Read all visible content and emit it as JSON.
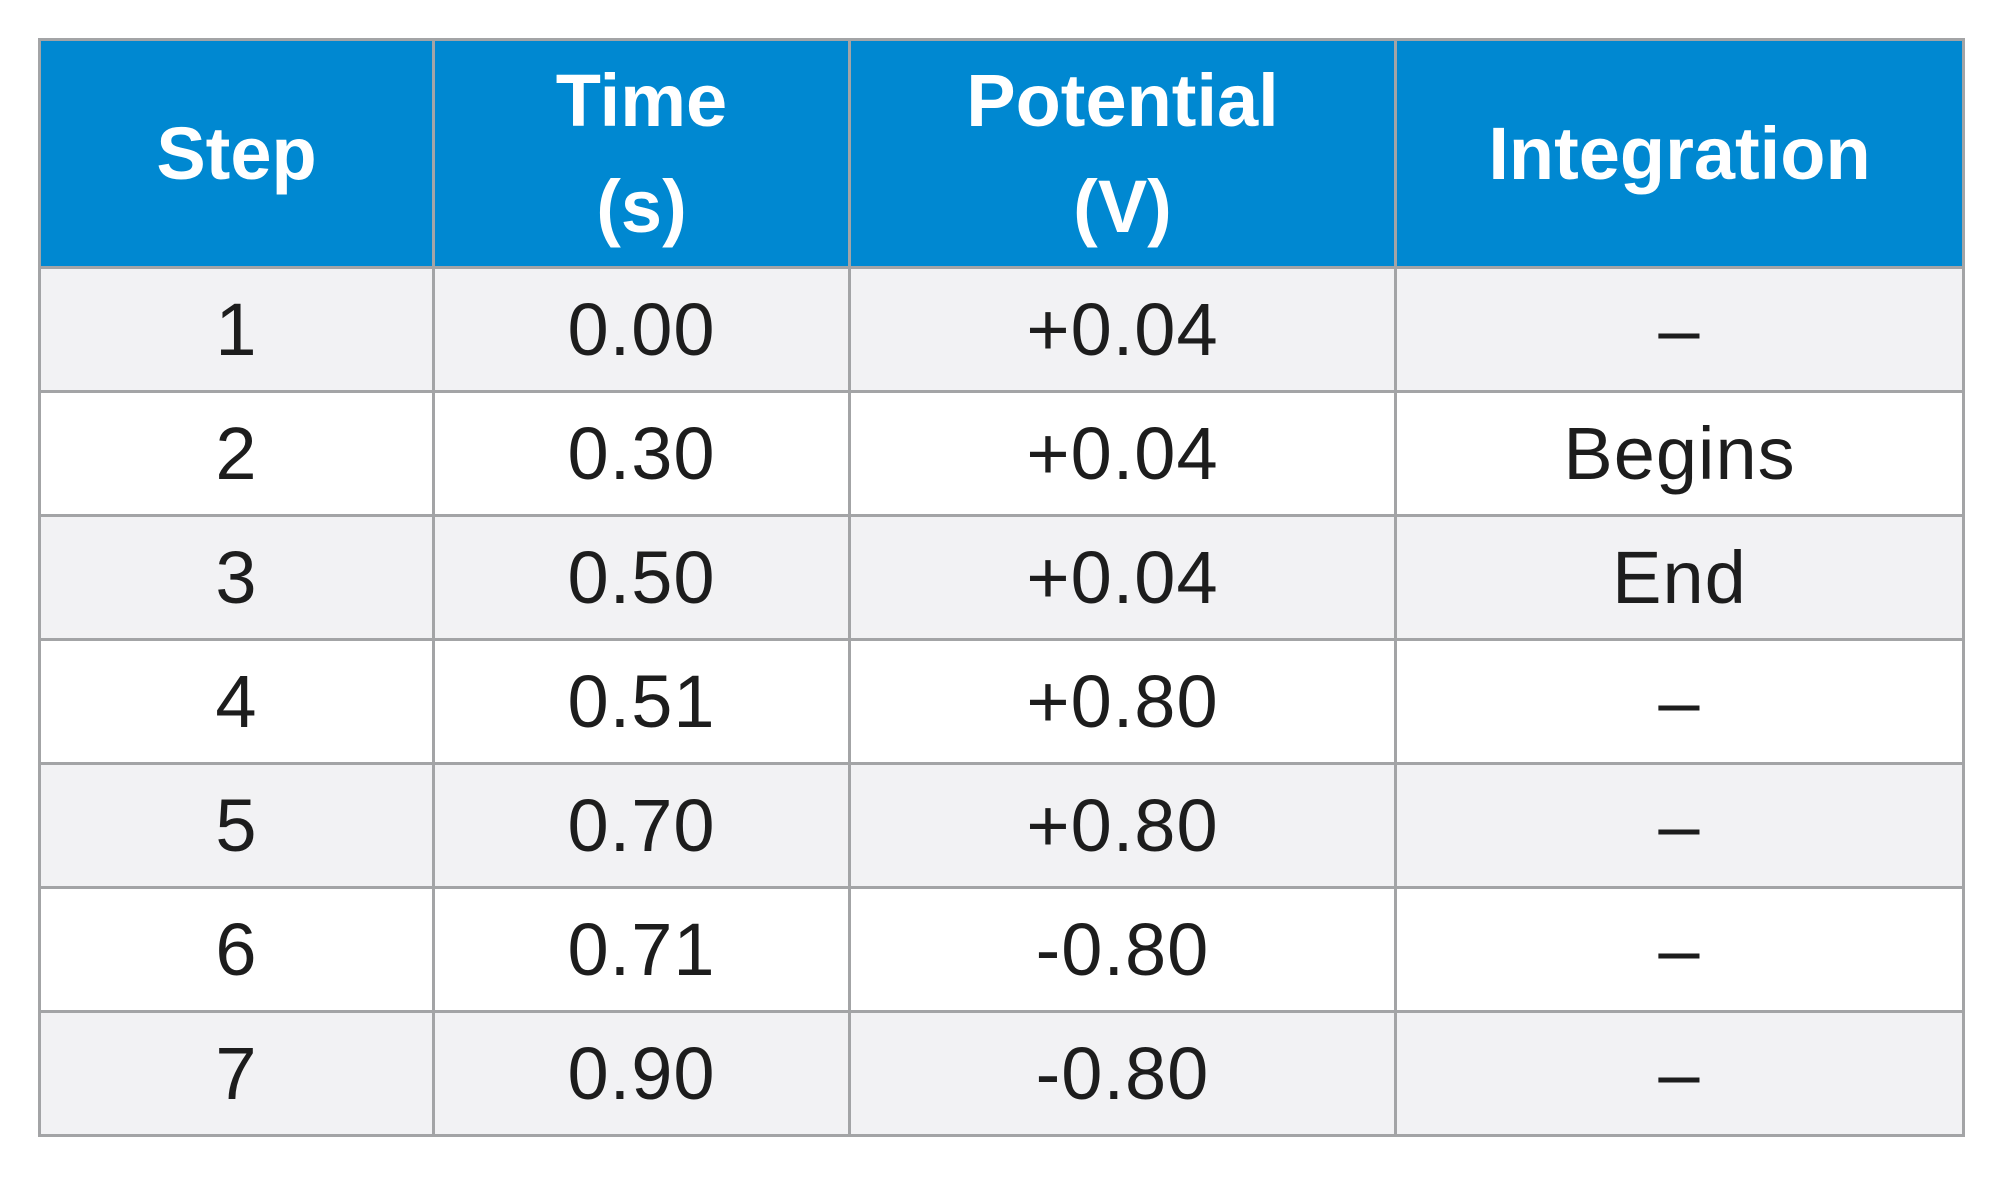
{
  "table": {
    "headers": [
      [
        "Step"
      ],
      [
        "Time",
        "(s)"
      ],
      [
        "Potential",
        "(V)"
      ],
      [
        "Integration"
      ]
    ],
    "rows": [
      [
        "1",
        "0.00",
        "+0.04",
        "–"
      ],
      [
        "2",
        "0.30",
        "+0.04",
        "Begins"
      ],
      [
        "3",
        "0.50",
        "+0.04",
        "End"
      ],
      [
        "4",
        "0.51",
        "+0.80",
        "–"
      ],
      [
        "5",
        "0.70",
        "+0.80",
        "–"
      ],
      [
        "6",
        "0.71",
        "-0.80",
        "–"
      ],
      [
        "7",
        "0.90",
        "-0.80",
        "–"
      ]
    ]
  },
  "colors": {
    "header_background": "#0088d1",
    "header_text": "#ffffff",
    "row_shaded": "#f2f2f4",
    "row_plain": "#ffffff",
    "grid": "#a3a4a6",
    "body_text": "#1d1d1d"
  }
}
